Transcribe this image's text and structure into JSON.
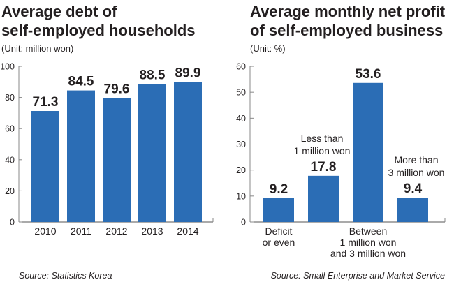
{
  "chart_data": [
    {
      "type": "bar",
      "title": "Average debt of self-employed households",
      "title_lines": [
        "Average debt of",
        "self-employed households"
      ],
      "unit": "(Unit: million won)",
      "categories": [
        "2010",
        "2011",
        "2012",
        "2013",
        "2014"
      ],
      "values": [
        71.3,
        84.5,
        79.6,
        88.5,
        89.9
      ],
      "value_labels": [
        "71.3",
        "84.5",
        "79.6",
        "88.5",
        "89.9"
      ],
      "yticks": [
        "0",
        "20",
        "40",
        "60",
        "80",
        "100"
      ],
      "ylim": [
        0,
        100
      ],
      "source": "Source: Statistics Korea",
      "color": "#2b6db5"
    },
    {
      "type": "bar",
      "title": "Average monthly net profit of self-employed business",
      "title_lines": [
        "Average monthly net profit",
        "of self-employed business"
      ],
      "unit": "(Unit: %)",
      "categories": [
        [
          "Deficit",
          "or even"
        ],
        [
          "Less than",
          "1 million won"
        ],
        [
          "Between",
          "1 million won",
          "and 3 million won"
        ],
        [
          "More than",
          "3 million won"
        ]
      ],
      "values": [
        9.2,
        17.8,
        53.6,
        9.4
      ],
      "value_labels": [
        "9.2",
        "17.8",
        "53.6",
        "9.4"
      ],
      "yticks": [
        "0",
        "10",
        "20",
        "30",
        "40",
        "50",
        "60"
      ],
      "ylim": [
        0,
        60
      ],
      "source": "Source: Small Enterprise and Market Service",
      "color": "#2b6db5"
    }
  ]
}
